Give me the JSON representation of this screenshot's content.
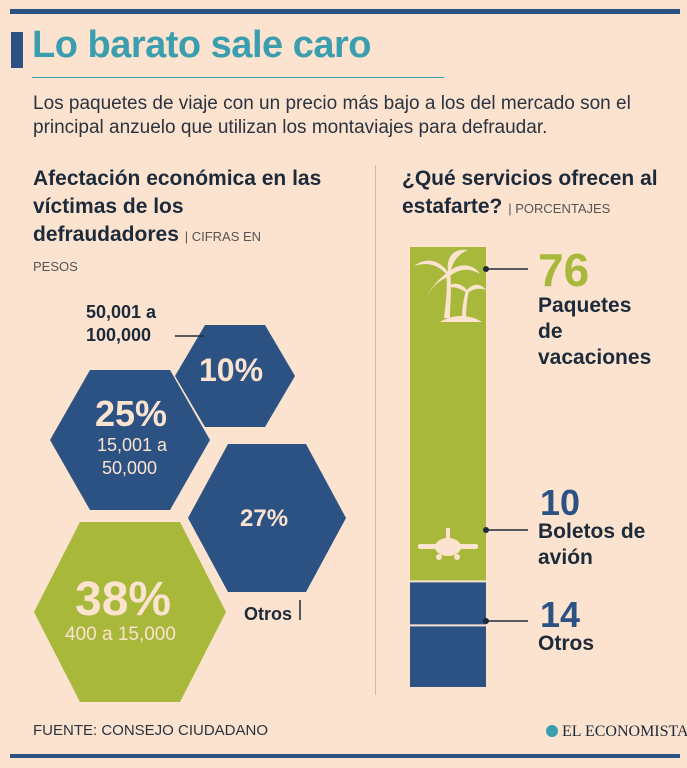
{
  "header": {
    "title": "Lo barato sale caro",
    "subtitle": "Los paquetes de viaje con un precio más bajo a los del mercado son el principal anzuelo que utilizan los montaviajes para defraudar."
  },
  "left_section": {
    "heading": "Afectación económica en las víctimas de los defraudadores",
    "unit_a": "| CIFRAS EN",
    "unit_b": "PESOS"
  },
  "right_section": {
    "heading": "¿Qué servicios ofrecen al estafarte?",
    "unit": "| PORCENTAJES"
  },
  "colors": {
    "green": "#a8b83a",
    "blue": "#2c5283",
    "accent": "#3a9eae",
    "background": "#fbe3cf"
  },
  "chart_data": [
    {
      "type": "hexagon",
      "items": [
        {
          "pct": "38%",
          "value": 38,
          "range": "400 a 15,000",
          "color": "green"
        },
        {
          "pct": "27%",
          "value": 27,
          "range": "Otros",
          "color": "blue"
        },
        {
          "pct": "25%",
          "value": 25,
          "range": "15,001 a 50,000",
          "color": "blue"
        },
        {
          "pct": "10%",
          "value": 10,
          "range": "50,001 a 100,000",
          "color": "blue"
        }
      ],
      "labels": {
        "range_10_line1": "50,001 a",
        "range_10_line2": "100,000",
        "range_25_line1": "15,001 a",
        "range_25_line2": "50,000",
        "range_38": "400 a 15,000",
        "range_27": "Otros"
      }
    },
    {
      "type": "bar",
      "stacked": true,
      "items": [
        {
          "value": 76,
          "label_lines": [
            "Paquetes",
            "de",
            "vacaciones"
          ],
          "color": "green",
          "icon": "palm-tree-icon"
        },
        {
          "value": 10,
          "label_lines": [
            "Boletos de",
            "avión"
          ],
          "color": "blue",
          "icon": "airplane-icon"
        },
        {
          "value": 14,
          "label_lines": [
            "Otros"
          ],
          "color": "blue"
        }
      ]
    }
  ],
  "footer": {
    "source": "FUENTE: CONSEJO CIUDADANO",
    "brand": "EL ECONOMISTA"
  }
}
